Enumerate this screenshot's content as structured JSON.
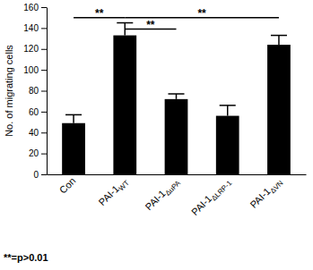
{
  "chart_data": {
    "type": "bar",
    "y_label": "No. of migrating cells",
    "categories": [
      "Con",
      "PAI-1WT",
      "PAI-1ΔuPA",
      "PAI-1ΔLRP-1",
      "PAI-1ΔVN"
    ],
    "values": [
      49,
      133,
      72,
      56,
      124
    ],
    "errors": [
      8,
      12,
      5,
      10,
      9
    ],
    "color": "#000000",
    "ylim": [
      0,
      160
    ],
    "yticks": [
      0,
      20,
      40,
      60,
      80,
      100,
      120,
      140,
      160
    ],
    "grid": false,
    "annotations": [
      {
        "text": "**",
        "from": "Con",
        "to": "PAI-1WT",
        "y": 150
      },
      {
        "text": "**",
        "from": "PAI-1WT",
        "to": "PAI-1ΔuPA",
        "y": 139
      },
      {
        "text": "**",
        "from": "PAI-1WT",
        "to": "PAI-1ΔVN",
        "y": 150
      }
    ],
    "footnote": "**=p>0.01"
  }
}
